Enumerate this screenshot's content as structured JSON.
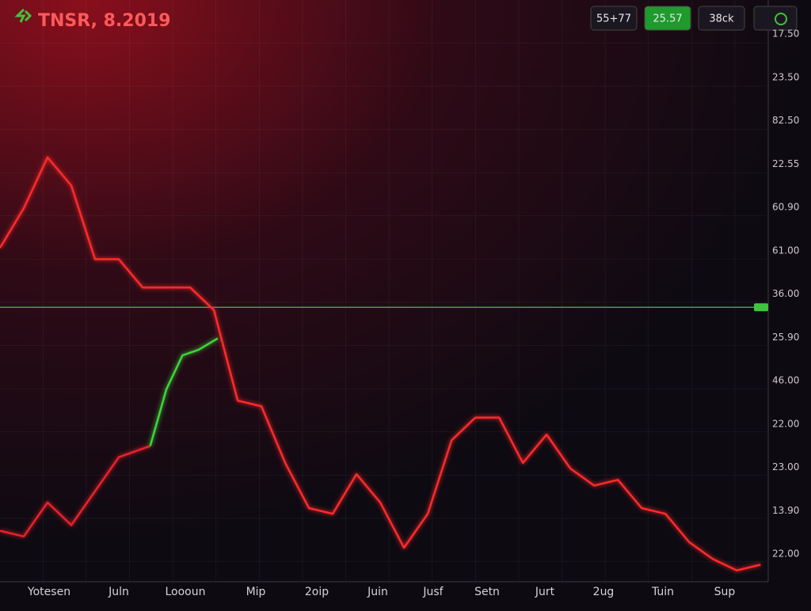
{
  "chart_data": {
    "type": "line",
    "title": "TNSR, 8.2019",
    "buttons": [
      "55+77",
      "25.57",
      "38ck"
    ],
    "y_axis_labels": [
      "17.50",
      "23.50",
      "82.50",
      "22.55",
      "60.90",
      "61.00",
      "36.00",
      "25.90",
      "46.00",
      "22.00",
      "23.00",
      "13.90",
      "22.00"
    ],
    "x_axis_labels": [
      "Yotesen",
      "Juln",
      "Loooun",
      "Mip",
      "2oip",
      "Juin",
      "Jusf",
      "Setn",
      "Jurt",
      "2ug",
      "Tuin",
      "Sup"
    ],
    "xlim": [
      0,
      100
    ],
    "ylim": [
      0,
      100
    ],
    "price_line": 48.5,
    "price_line_color": "#3ec43e",
    "series": [
      {
        "color": "#ff2a2a",
        "x": [
          0,
          3.1,
          6.2,
          9.3,
          12.4,
          15.5,
          18.6,
          21.7,
          24.8,
          27.9,
          31,
          34.1,
          37.2,
          40.3,
          43.4,
          46.5,
          49.6,
          52.7,
          55.8,
          58.9,
          62,
          65.1,
          68.2,
          71.3,
          74.4,
          77.5,
          80.6,
          83.7,
          86.8,
          89.9,
          93,
          96.1,
          99.2
        ],
        "values": [
          59,
          66,
          75,
          70,
          57,
          57,
          52,
          52,
          52,
          48,
          32,
          31,
          21,
          13,
          12,
          19,
          14,
          6,
          12,
          25,
          29,
          29,
          21,
          26,
          20,
          17,
          18,
          13,
          12,
          7,
          4,
          2,
          3
        ]
      },
      {
        "color": "#e8242a",
        "x": [
          0,
          3.1,
          6.2,
          9.3,
          12.4,
          15.5,
          19.6
        ],
        "values": [
          9,
          8,
          14,
          10,
          16,
          22,
          24
        ]
      },
      {
        "color": "#3fd43a",
        "x": [
          19.6,
          21.7,
          23.8,
          25.9,
          28.4
        ],
        "values": [
          24,
          34,
          40,
          41,
          43
        ]
      }
    ]
  }
}
